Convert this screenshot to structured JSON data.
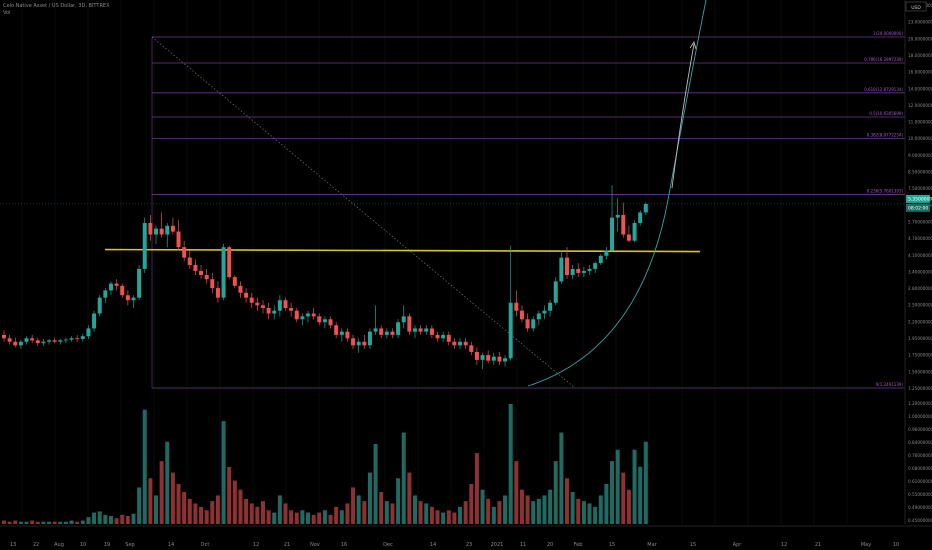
{
  "header": {
    "symbol_line": "Celo Native Asset / US Dollar, 3D, BITTREX",
    "volume_label": "Vol"
  },
  "chart_data": {
    "type": "candlestick",
    "title": "Celo Native Asset / US Dollar, 3D, BITTREX",
    "price_axis": {
      "ticks": [
        "28.00000000",
        "23.00000000",
        "20.00000000",
        "18.00000000",
        "16.00000000",
        "14.00000000",
        "12.00000000",
        "11.00000000",
        "10.00000000",
        "9.00000000",
        "8.50000000",
        "7.50000000",
        "6.70000000",
        "5.70000000",
        "4.70000000",
        "4.10000000",
        "3.40000000",
        "2.80000000",
        "2.50000000",
        "2.20000000",
        "1.95000000",
        "1.75000000",
        "1.50000000",
        "1.25000000"
      ],
      "currency": "USD",
      "last_price": "5.35000000",
      "countdown": "08:02:00"
    },
    "volume_axis": {
      "ticks": [
        "1.20000000",
        "1.00000000",
        "0.96000000",
        "0.84000000",
        "0.76000000",
        "0.68000000",
        "0.61000000",
        "0.55000000",
        "0.49000000",
        "0.45000000"
      ]
    },
    "time_axis": [
      "13",
      "22",
      "Aug",
      "10",
      "19",
      "Sep",
      "14",
      "Oct",
      "12",
      "21",
      "Nov",
      "16",
      "Dec",
      "14",
      "23",
      "2021",
      "11",
      "20",
      "Feb",
      "15",
      "Mar",
      "15",
      "Apr",
      "12",
      "21",
      "May",
      "10"
    ],
    "fib_levels": [
      {
        "label": "1(20.0000000)",
        "price": 20.0
      },
      {
        "label": "0.786(16.2897239)",
        "price": 16.29
      },
      {
        "label": "0.618(12.8729134)",
        "price": 12.87
      },
      {
        "label": "0.5(10.6305699)",
        "price": 10.63
      },
      {
        "label": "0.382(8.9772254)",
        "price": 8.98
      },
      {
        "label": "0.236(5.7601393)",
        "price": 5.76
      },
      {
        "label": "0(1.2491139)",
        "price": 1.249
      }
    ],
    "support_line_price": 3.7,
    "candles": [
      [
        1.9,
        1.97,
        1.8,
        1.85
      ],
      [
        1.85,
        1.9,
        1.76,
        1.8
      ],
      [
        1.8,
        1.86,
        1.72,
        1.75
      ],
      [
        1.75,
        1.83,
        1.7,
        1.8
      ],
      [
        1.8,
        1.88,
        1.76,
        1.85
      ],
      [
        1.85,
        1.9,
        1.78,
        1.82
      ],
      [
        1.82,
        1.86,
        1.74,
        1.78
      ],
      [
        1.78,
        1.84,
        1.74,
        1.8
      ],
      [
        1.8,
        1.84,
        1.76,
        1.82
      ],
      [
        1.82,
        1.86,
        1.78,
        1.8
      ],
      [
        1.8,
        1.84,
        1.76,
        1.82
      ],
      [
        1.82,
        1.86,
        1.78,
        1.83
      ],
      [
        1.83,
        1.88,
        1.8,
        1.85
      ],
      [
        1.85,
        1.9,
        1.8,
        1.84
      ],
      [
        1.84,
        1.92,
        1.8,
        1.88
      ],
      [
        1.88,
        2.05,
        1.84,
        2.0
      ],
      [
        2.0,
        2.3,
        1.95,
        2.25
      ],
      [
        2.25,
        2.6,
        2.2,
        2.55
      ],
      [
        2.55,
        2.75,
        2.45,
        2.7
      ],
      [
        2.7,
        2.9,
        2.6,
        2.85
      ],
      [
        2.85,
        2.95,
        2.7,
        2.8
      ],
      [
        2.8,
        2.85,
        2.55,
        2.6
      ],
      [
        2.6,
        2.7,
        2.4,
        2.5
      ],
      [
        2.5,
        2.6,
        2.35,
        2.55
      ],
      [
        2.55,
        3.3,
        2.5,
        3.2
      ],
      [
        3.2,
        4.8,
        3.1,
        4.6
      ],
      [
        4.6,
        4.9,
        4.0,
        4.2
      ],
      [
        4.2,
        4.5,
        3.9,
        4.4
      ],
      [
        4.4,
        5.0,
        4.1,
        4.2
      ],
      [
        4.2,
        4.6,
        3.8,
        4.5
      ],
      [
        4.5,
        4.8,
        4.2,
        4.3
      ],
      [
        4.3,
        4.7,
        3.7,
        3.8
      ],
      [
        3.8,
        4.0,
        3.4,
        3.5
      ],
      [
        3.5,
        3.7,
        3.2,
        3.3
      ],
      [
        3.3,
        3.45,
        3.05,
        3.15
      ],
      [
        3.15,
        3.3,
        2.95,
        3.05
      ],
      [
        3.05,
        3.2,
        2.85,
        2.95
      ],
      [
        2.95,
        3.1,
        2.65,
        2.75
      ],
      [
        2.75,
        2.9,
        2.45,
        2.55
      ],
      [
        2.55,
        3.9,
        2.5,
        3.8
      ],
      [
        3.8,
        3.85,
        2.95,
        3.0
      ],
      [
        3.0,
        3.05,
        2.75,
        2.8
      ],
      [
        2.8,
        2.9,
        2.55,
        2.65
      ],
      [
        2.65,
        2.75,
        2.45,
        2.55
      ],
      [
        2.55,
        2.65,
        2.35,
        2.45
      ],
      [
        2.45,
        2.55,
        2.3,
        2.4
      ],
      [
        2.4,
        2.5,
        2.25,
        2.35
      ],
      [
        2.35,
        2.45,
        2.15,
        2.25
      ],
      [
        2.25,
        2.4,
        2.15,
        2.3
      ],
      [
        2.3,
        2.6,
        2.2,
        2.5
      ],
      [
        2.5,
        2.55,
        2.3,
        2.35
      ],
      [
        2.35,
        2.45,
        2.2,
        2.3
      ],
      [
        2.3,
        2.35,
        2.1,
        2.15
      ],
      [
        2.15,
        2.25,
        2.05,
        2.2
      ],
      [
        2.2,
        2.3,
        2.1,
        2.25
      ],
      [
        2.25,
        2.35,
        2.15,
        2.2
      ],
      [
        2.2,
        2.25,
        2.05,
        2.1
      ],
      [
        2.1,
        2.2,
        2.0,
        2.15
      ],
      [
        2.15,
        2.2,
        2.0,
        2.05
      ],
      [
        2.05,
        2.1,
        1.85,
        1.9
      ],
      [
        1.9,
        2.0,
        1.8,
        1.95
      ],
      [
        1.95,
        2.0,
        1.8,
        1.85
      ],
      [
        1.85,
        1.9,
        1.7,
        1.75
      ],
      [
        1.75,
        1.85,
        1.65,
        1.8
      ],
      [
        1.8,
        1.9,
        1.7,
        1.75
      ],
      [
        1.75,
        2.0,
        1.7,
        1.95
      ],
      [
        1.95,
        2.4,
        1.9,
        2.0
      ],
      [
        2.0,
        2.05,
        1.85,
        1.9
      ],
      [
        1.9,
        2.0,
        1.85,
        1.95
      ],
      [
        1.95,
        2.0,
        1.85,
        1.9
      ],
      [
        1.9,
        2.15,
        1.85,
        2.1
      ],
      [
        2.1,
        2.4,
        2.0,
        2.2
      ],
      [
        2.2,
        2.25,
        1.9,
        1.95
      ],
      [
        1.95,
        2.05,
        1.85,
        2.0
      ],
      [
        2.0,
        2.05,
        1.9,
        1.95
      ],
      [
        1.95,
        2.05,
        1.9,
        2.0
      ],
      [
        2.0,
        2.05,
        1.85,
        1.9
      ],
      [
        1.9,
        1.95,
        1.8,
        1.85
      ],
      [
        1.85,
        1.95,
        1.8,
        1.9
      ],
      [
        1.9,
        1.95,
        1.75,
        1.8
      ],
      [
        1.8,
        1.85,
        1.7,
        1.75
      ],
      [
        1.75,
        1.85,
        1.7,
        1.8
      ],
      [
        1.8,
        1.85,
        1.7,
        1.75
      ],
      [
        1.75,
        1.8,
        1.62,
        1.66
      ],
      [
        1.66,
        1.72,
        1.5,
        1.56
      ],
      [
        1.56,
        1.65,
        1.45,
        1.62
      ],
      [
        1.62,
        1.68,
        1.52,
        1.55
      ],
      [
        1.55,
        1.65,
        1.5,
        1.6
      ],
      [
        1.6,
        1.66,
        1.5,
        1.54
      ],
      [
        1.54,
        1.62,
        1.48,
        1.58
      ],
      [
        1.58,
        3.85,
        1.55,
        2.45
      ],
      [
        2.45,
        2.7,
        2.2,
        2.3
      ],
      [
        2.3,
        2.4,
        2.1,
        2.15
      ],
      [
        2.15,
        2.25,
        1.95,
        2.0
      ],
      [
        2.0,
        2.2,
        1.95,
        2.15
      ],
      [
        2.15,
        2.3,
        2.05,
        2.25
      ],
      [
        2.25,
        2.4,
        2.15,
        2.3
      ],
      [
        2.3,
        2.5,
        2.2,
        2.45
      ],
      [
        2.45,
        3.0,
        2.4,
        2.9
      ],
      [
        2.9,
        3.7,
        2.85,
        3.5
      ],
      [
        3.5,
        3.8,
        2.95,
        3.05
      ],
      [
        3.05,
        3.3,
        2.95,
        3.2
      ],
      [
        3.2,
        3.35,
        3.0,
        3.1
      ],
      [
        3.1,
        3.25,
        3.0,
        3.15
      ],
      [
        3.15,
        3.3,
        3.05,
        3.2
      ],
      [
        3.2,
        3.4,
        3.1,
        3.35
      ],
      [
        3.35,
        3.6,
        3.3,
        3.55
      ],
      [
        3.55,
        3.8,
        3.45,
        3.7
      ],
      [
        3.7,
        6.2,
        3.65,
        4.8
      ],
      [
        4.8,
        5.6,
        4.3,
        4.9
      ],
      [
        4.9,
        5.4,
        4.1,
        4.2
      ],
      [
        4.2,
        4.5,
        3.95,
        4.0
      ],
      [
        4.0,
        4.7,
        3.95,
        4.6
      ],
      [
        4.6,
        5.1,
        4.5,
        5.0
      ],
      [
        5.0,
        5.4,
        4.9,
        5.35
      ]
    ],
    "volumes": [
      0.03,
      0.02,
      0.03,
      0.02,
      0.02,
      0.03,
      0.02,
      0.02,
      0.02,
      0.02,
      0.02,
      0.02,
      0.03,
      0.02,
      0.03,
      0.06,
      0.1,
      0.11,
      0.08,
      0.07,
      0.05,
      0.08,
      0.07,
      0.09,
      0.32,
      1.0,
      0.4,
      0.25,
      0.55,
      0.72,
      0.45,
      0.35,
      0.28,
      0.22,
      0.18,
      0.15,
      0.12,
      0.2,
      0.25,
      0.9,
      0.5,
      0.38,
      0.3,
      0.22,
      0.18,
      0.15,
      0.2,
      0.12,
      0.1,
      0.25,
      0.18,
      0.12,
      0.1,
      0.12,
      0.1,
      0.08,
      0.1,
      0.12,
      0.08,
      0.15,
      0.12,
      0.18,
      0.32,
      0.25,
      0.2,
      0.45,
      0.7,
      0.28,
      0.2,
      0.18,
      0.4,
      0.8,
      0.45,
      0.25,
      0.2,
      0.18,
      0.15,
      0.12,
      0.1,
      0.12,
      0.1,
      0.15,
      0.2,
      0.35,
      0.62,
      0.3,
      0.22,
      0.15,
      0.2,
      0.25,
      1.05,
      0.55,
      0.3,
      0.25,
      0.2,
      0.22,
      0.25,
      0.3,
      0.55,
      0.8,
      0.4,
      0.28,
      0.22,
      0.2,
      0.18,
      0.15,
      0.25,
      0.35,
      0.55,
      0.65,
      0.45,
      0.3,
      0.65,
      0.5,
      0.72
    ]
  }
}
